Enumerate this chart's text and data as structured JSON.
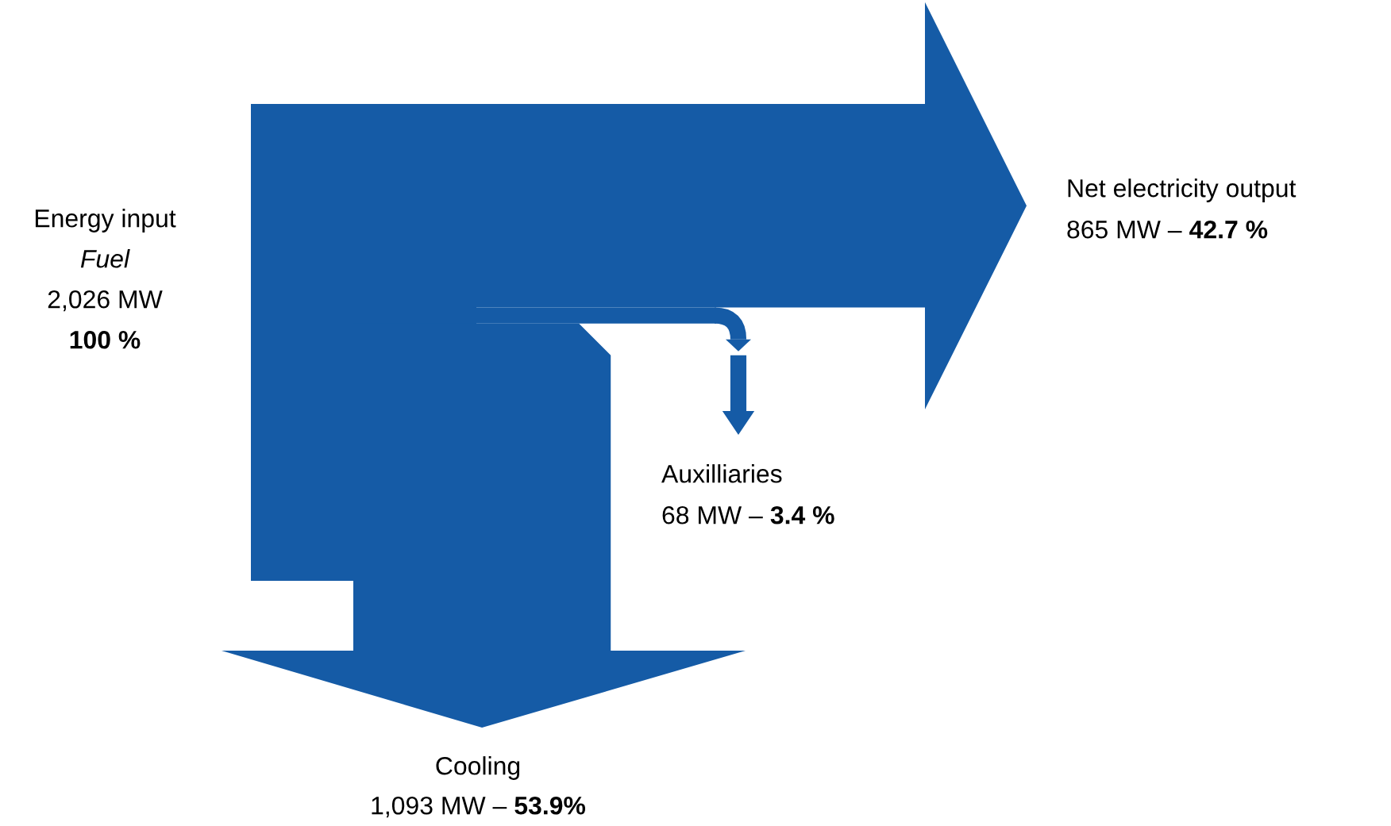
{
  "chart_data": {
    "type": "other",
    "categories": [
      "Energy input",
      "Net electricity output",
      "Auxilliaries",
      "Cooling"
    ],
    "values": [
      2026,
      865,
      68,
      1093
    ],
    "value_labels": [
      "2,026 MW",
      "865 MW –",
      "68 MW –",
      "1,093 MW –"
    ],
    "annotations": [
      "Fuel",
      "100 %",
      "42.7 %",
      "3.4 %",
      "53.9%"
    ],
    "color": "#155ba6"
  }
}
